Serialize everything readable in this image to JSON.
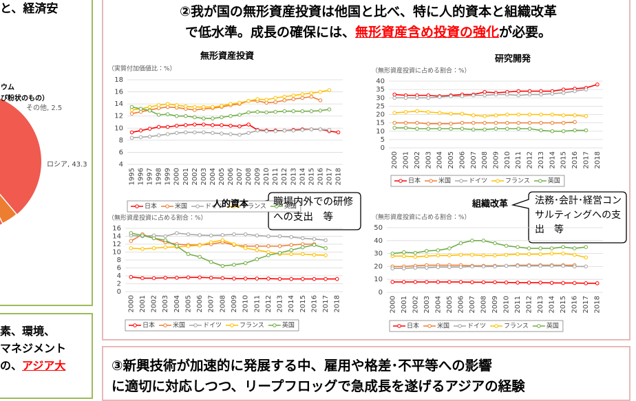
{
  "left_panel": {
    "top_text": "と、経済安",
    "pie_labels": [
      "ウム",
      "び粉状のもの）",
      "その他, 2.5",
      "ロシア, 43.3"
    ],
    "bottom_lines": [
      "素、環境、",
      "マネジメント"
    ],
    "bottom_last": {
      "text": "の、",
      "highlight": "アジア大"
    }
  },
  "right_panel": {
    "heading_line1": "②我が国の無形資産投資は他国と比べ、特に人的資本と組織改革",
    "heading_line2": {
      "before": "で低水準。成長の確保には、",
      "highlight": "無形資産含め投資の強化",
      "after": "が必要。"
    },
    "callouts": [
      "職場内外での研修への支出　等",
      "法務･会計･経営コンサルティングへの支出　等"
    ]
  },
  "chart_data": [
    {
      "type": "line",
      "title": "無形資産投資",
      "y_label": "（実質付加価値比：%）",
      "categories": [
        "1995",
        "1996",
        "1997",
        "1998",
        "1999",
        "2000",
        "2001",
        "2002",
        "2003",
        "2004",
        "2005",
        "2006",
        "2007",
        "2008",
        "2009",
        "2010",
        "2011",
        "2012",
        "2013",
        "2014",
        "2015",
        "2016",
        "2017",
        "2018"
      ],
      "ylim": [
        4,
        18
      ],
      "yticks": [
        4,
        6,
        8,
        10,
        12,
        14,
        16,
        18
      ],
      "grid": true,
      "series": [
        {
          "name": "日本",
          "color": "#ff0000",
          "values": [
            9.3,
            9.6,
            9.9,
            10.2,
            10.2,
            10.4,
            10.5,
            10.6,
            10.6,
            10.5,
            10.5,
            10.4,
            10.3,
            10.6,
            9.7,
            9.6,
            9.6,
            9.6,
            9.7,
            9.8,
            9.8,
            9.8,
            9.5,
            9.3
          ]
        },
        {
          "name": "米国",
          "color": "#ed7d31",
          "values": [
            12.4,
            12.7,
            13.0,
            13.3,
            13.5,
            13.4,
            13.2,
            13.0,
            13.2,
            13.3,
            13.5,
            13.8,
            14.0,
            14.5,
            14.5,
            14.2,
            14.3,
            14.6,
            14.8,
            15.0,
            15.2,
            14.6,
            null,
            null
          ]
        },
        {
          "name": "ドイツ",
          "color": "#a5a5a5",
          "values": [
            8.4,
            8.5,
            8.6,
            8.8,
            9.0,
            9.2,
            9.3,
            9.3,
            9.3,
            9.2,
            9.1,
            9.0,
            8.9,
            9.2,
            9.6,
            9.5,
            9.5,
            9.6,
            9.6,
            9.7,
            9.8,
            9.8,
            9.7,
            null
          ]
        },
        {
          "name": "フランス",
          "color": "#ffc000",
          "values": [
            13.0,
            13.2,
            13.5,
            13.8,
            14.0,
            13.8,
            13.6,
            13.5,
            13.5,
            13.5,
            13.7,
            14.0,
            14.2,
            14.5,
            14.8,
            14.7,
            15.0,
            15.2,
            15.4,
            15.6,
            15.8,
            16.0,
            16.3,
            null
          ]
        },
        {
          "name": "英国",
          "color": "#70ad47",
          "values": [
            13.5,
            13.2,
            12.9,
            12.2,
            12.3,
            12.0,
            12.0,
            11.8,
            11.6,
            11.6,
            11.8,
            12.0,
            12.2,
            12.6,
            12.7,
            12.6,
            12.7,
            12.8,
            12.8,
            12.8,
            12.8,
            12.9,
            13.1,
            null
          ]
        }
      ]
    },
    {
      "type": "line",
      "title": "研究開発",
      "y_label": "（無形資産投資に占める割合：%）",
      "categories": [
        "2000",
        "2001",
        "2002",
        "2003",
        "2004",
        "2005",
        "2006",
        "2007",
        "2008",
        "2009",
        "2010",
        "2011",
        "2012",
        "2013",
        "2014",
        "2015",
        "2016",
        "2017",
        "2018"
      ],
      "ylim": [
        0,
        40
      ],
      "yticks": [
        0,
        5,
        10,
        15,
        20,
        25,
        30,
        35,
        40
      ],
      "grid": true,
      "series": [
        {
          "name": "日本",
          "color": "#ff0000",
          "values": [
            32,
            31.5,
            31.5,
            31.5,
            31,
            31.5,
            32,
            32,
            33.5,
            33,
            33.5,
            34,
            34,
            34,
            34,
            35,
            35.5,
            36,
            38
          ]
        },
        {
          "name": "米国",
          "color": "#ed7d31",
          "values": [
            15,
            15,
            15,
            14.5,
            14.5,
            14.5,
            15,
            15,
            15,
            15,
            15,
            15,
            15,
            15,
            15,
            15,
            15.5,
            null,
            null
          ]
        },
        {
          "name": "ドイツ",
          "color": "#a5a5a5",
          "values": [
            30,
            30,
            30,
            30,
            30.5,
            31,
            31,
            31.5,
            31.5,
            32,
            32,
            31.5,
            32,
            32,
            32.5,
            33,
            34,
            35,
            null
          ]
        },
        {
          "name": "フランス",
          "color": "#ffc000",
          "values": [
            21,
            21.5,
            22,
            21.5,
            21,
            20.5,
            20.5,
            19.5,
            19,
            19.5,
            20,
            20,
            20,
            20,
            20,
            19.5,
            19.5,
            19,
            null
          ]
        },
        {
          "name": "英国",
          "color": "#70ad47",
          "values": [
            12,
            12,
            11.5,
            11.5,
            11.5,
            11.5,
            11.5,
            11,
            11,
            11.5,
            11.5,
            11.5,
            11.5,
            10.5,
            10,
            10,
            10.5,
            10.5,
            null
          ]
        }
      ]
    },
    {
      "type": "line",
      "title": "人的資本",
      "y_label": "（無形資産投資に占める割合：%）",
      "categories": [
        "2000",
        "2001",
        "2002",
        "2003",
        "2004",
        "2005",
        "2006",
        "2007",
        "2008",
        "2009",
        "2010",
        "2011",
        "2012",
        "2013",
        "2014",
        "2015",
        "2016",
        "2017",
        "2018"
      ],
      "ylim": [
        0,
        16
      ],
      "yticks": [
        0,
        2,
        4,
        6,
        8,
        10,
        12,
        14,
        16
      ],
      "grid": true,
      "series": [
        {
          "name": "日本",
          "color": "#ff0000",
          "values": [
            3.7,
            3.4,
            3.4,
            3.5,
            3.5,
            3.6,
            3.6,
            3.5,
            3.4,
            3.3,
            3.3,
            3.3,
            3.3,
            3.2,
            3.2,
            3.2,
            3.2,
            3.2,
            3.2
          ]
        },
        {
          "name": "米国",
          "color": "#ed7d31",
          "values": [
            12.8,
            14.5,
            13.5,
            12.5,
            12,
            11.8,
            11.8,
            12,
            12.5,
            11.8,
            11.5,
            11.5,
            11.5,
            11.5,
            11.8,
            12,
            12,
            null,
            null
          ]
        },
        {
          "name": "ドイツ",
          "color": "#a5a5a5",
          "values": [
            14.2,
            14,
            14.2,
            14,
            14.8,
            14.5,
            14.3,
            14.2,
            14.3,
            14.5,
            14.5,
            14.2,
            14,
            14,
            13.8,
            13.5,
            13.3,
            13,
            null
          ]
        },
        {
          "name": "フランス",
          "color": "#ffc000",
          "values": [
            11,
            10.8,
            11,
            11.2,
            11.3,
            11.5,
            11.7,
            12.5,
            13,
            12,
            11,
            10.5,
            10,
            9.5,
            9.5,
            9.5,
            9.3,
            9.2,
            null
          ]
        },
        {
          "name": "英国",
          "color": "#70ad47",
          "values": [
            14.8,
            14.2,
            13.5,
            13,
            11.5,
            9.5,
            8.8,
            7.5,
            6.5,
            6.8,
            7.2,
            8.2,
            9.2,
            9.8,
            10.5,
            11.2,
            11.8,
            11,
            null
          ]
        }
      ]
    },
    {
      "type": "line",
      "title": "組織改革",
      "y_label": "（無形資産投資に占める割合：%）",
      "categories": [
        "2000",
        "2001",
        "2002",
        "2003",
        "2004",
        "2005",
        "2006",
        "2007",
        "2008",
        "2009",
        "2010",
        "2011",
        "2012",
        "2013",
        "2014",
        "2015",
        "2016",
        "2017",
        "2018"
      ],
      "ylim": [
        0,
        50
      ],
      "yticks": [
        0,
        10,
        20,
        30,
        40,
        50
      ],
      "grid": true,
      "series": [
        {
          "name": "日本",
          "color": "#ff0000",
          "values": [
            8,
            8,
            8,
            8,
            8,
            8,
            8,
            7.8,
            7.8,
            7.8,
            7.6,
            7.5,
            7.5,
            7.5,
            7.3,
            7.2,
            7.2,
            7,
            7
          ]
        },
        {
          "name": "米国",
          "color": "#ed7d31",
          "values": [
            20,
            20,
            20.5,
            21,
            21,
            21,
            21,
            20.5,
            20.5,
            20.5,
            20.5,
            21,
            21,
            21,
            21,
            21,
            21,
            null,
            null
          ]
        },
        {
          "name": "ドイツ",
          "color": "#a5a5a5",
          "values": [
            18.5,
            18.5,
            19,
            19,
            19.5,
            19.5,
            19.5,
            20,
            20,
            20,
            20.5,
            20.5,
            20.5,
            20.5,
            20.5,
            20.5,
            20,
            20,
            null
          ]
        },
        {
          "name": "フランス",
          "color": "#ffc000",
          "values": [
            28,
            28,
            27.5,
            28,
            28.5,
            28.5,
            29,
            29,
            28.5,
            28.5,
            29,
            29.5,
            29.5,
            29.5,
            30,
            30,
            29,
            27,
            null
          ]
        },
        {
          "name": "英国",
          "color": "#70ad47",
          "values": [
            30,
            31,
            30.5,
            32,
            32.5,
            34,
            38,
            40,
            40,
            38,
            36,
            35,
            34,
            34,
            34,
            35,
            34,
            35,
            null
          ]
        }
      ]
    }
  ],
  "bottom_panel": {
    "lines": [
      "③新興技術が加速的に発展する中、雇用や格差･不平等への影響",
      "に適切に対応しつつ、リープフロッグで急成長を遂げるアジアの経験"
    ]
  }
}
